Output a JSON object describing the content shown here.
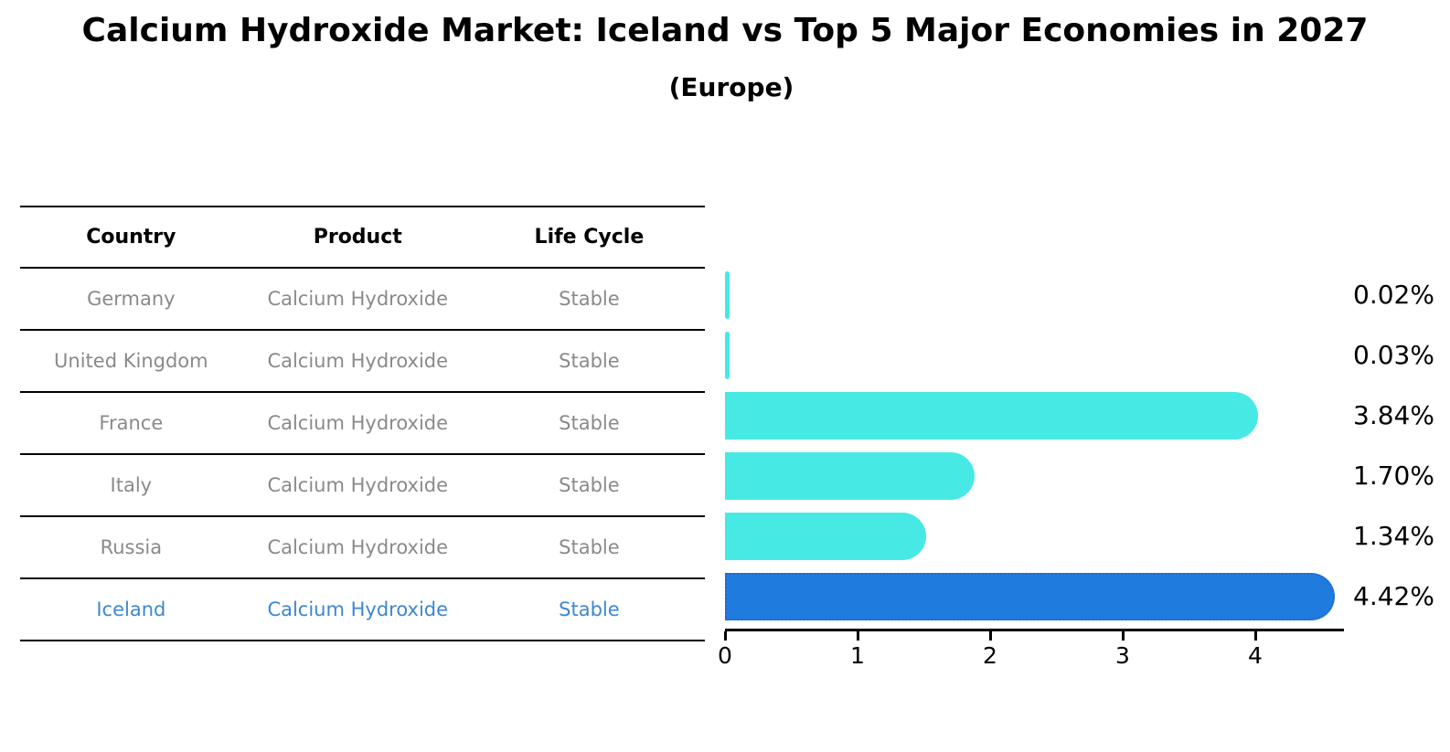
{
  "title": "Calcium Hydroxide Market: Iceland vs Top 5 Major Economies in 2027",
  "subtitle": "(Europe)",
  "table": {
    "headers": [
      "Country",
      "Product",
      "Life Cycle"
    ],
    "rows": [
      {
        "country": "Germany",
        "product": "Calcium Hydroxide",
        "life_cycle": "Stable",
        "highlighted": false
      },
      {
        "country": "United Kingdom",
        "product": "Calcium Hydroxide",
        "life_cycle": "Stable",
        "highlighted": false
      },
      {
        "country": "France",
        "product": "Calcium Hydroxide",
        "life_cycle": "Stable",
        "highlighted": false
      },
      {
        "country": "Italy",
        "product": "Calcium Hydroxide",
        "life_cycle": "Stable",
        "highlighted": false
      },
      {
        "country": "Russia",
        "product": "Calcium Hydroxide",
        "life_cycle": "Stable",
        "highlighted": false
      },
      {
        "country": "Iceland",
        "product": "Calcium Hydroxide",
        "life_cycle": "Stable",
        "highlighted": true
      }
    ]
  },
  "chart_data": {
    "type": "bar",
    "orientation": "horizontal",
    "title": "Calcium Hydroxide Market: Iceland vs Top 5 Major Economies in 2027 (Europe)",
    "categories": [
      "Germany",
      "United Kingdom",
      "France",
      "Italy",
      "Russia",
      "Iceland"
    ],
    "values": [
      0.02,
      0.03,
      3.84,
      1.7,
      1.34,
      4.42
    ],
    "value_labels": [
      "0.02%",
      "0.03%",
      "3.84%",
      "1.70%",
      "1.34%",
      "4.42%"
    ],
    "x_ticks": [
      0,
      1,
      2,
      3,
      4
    ],
    "x_tick_labels": [
      "0",
      "1",
      "2",
      "3",
      "4"
    ],
    "xlim": [
      0,
      4.65
    ],
    "grid": false,
    "legend_position": "none",
    "highlight_index": 5,
    "bar_color": "#47e9e4",
    "highlight_bar_color": "#1f7cde",
    "highlight_text_color": "#3d87d1"
  }
}
